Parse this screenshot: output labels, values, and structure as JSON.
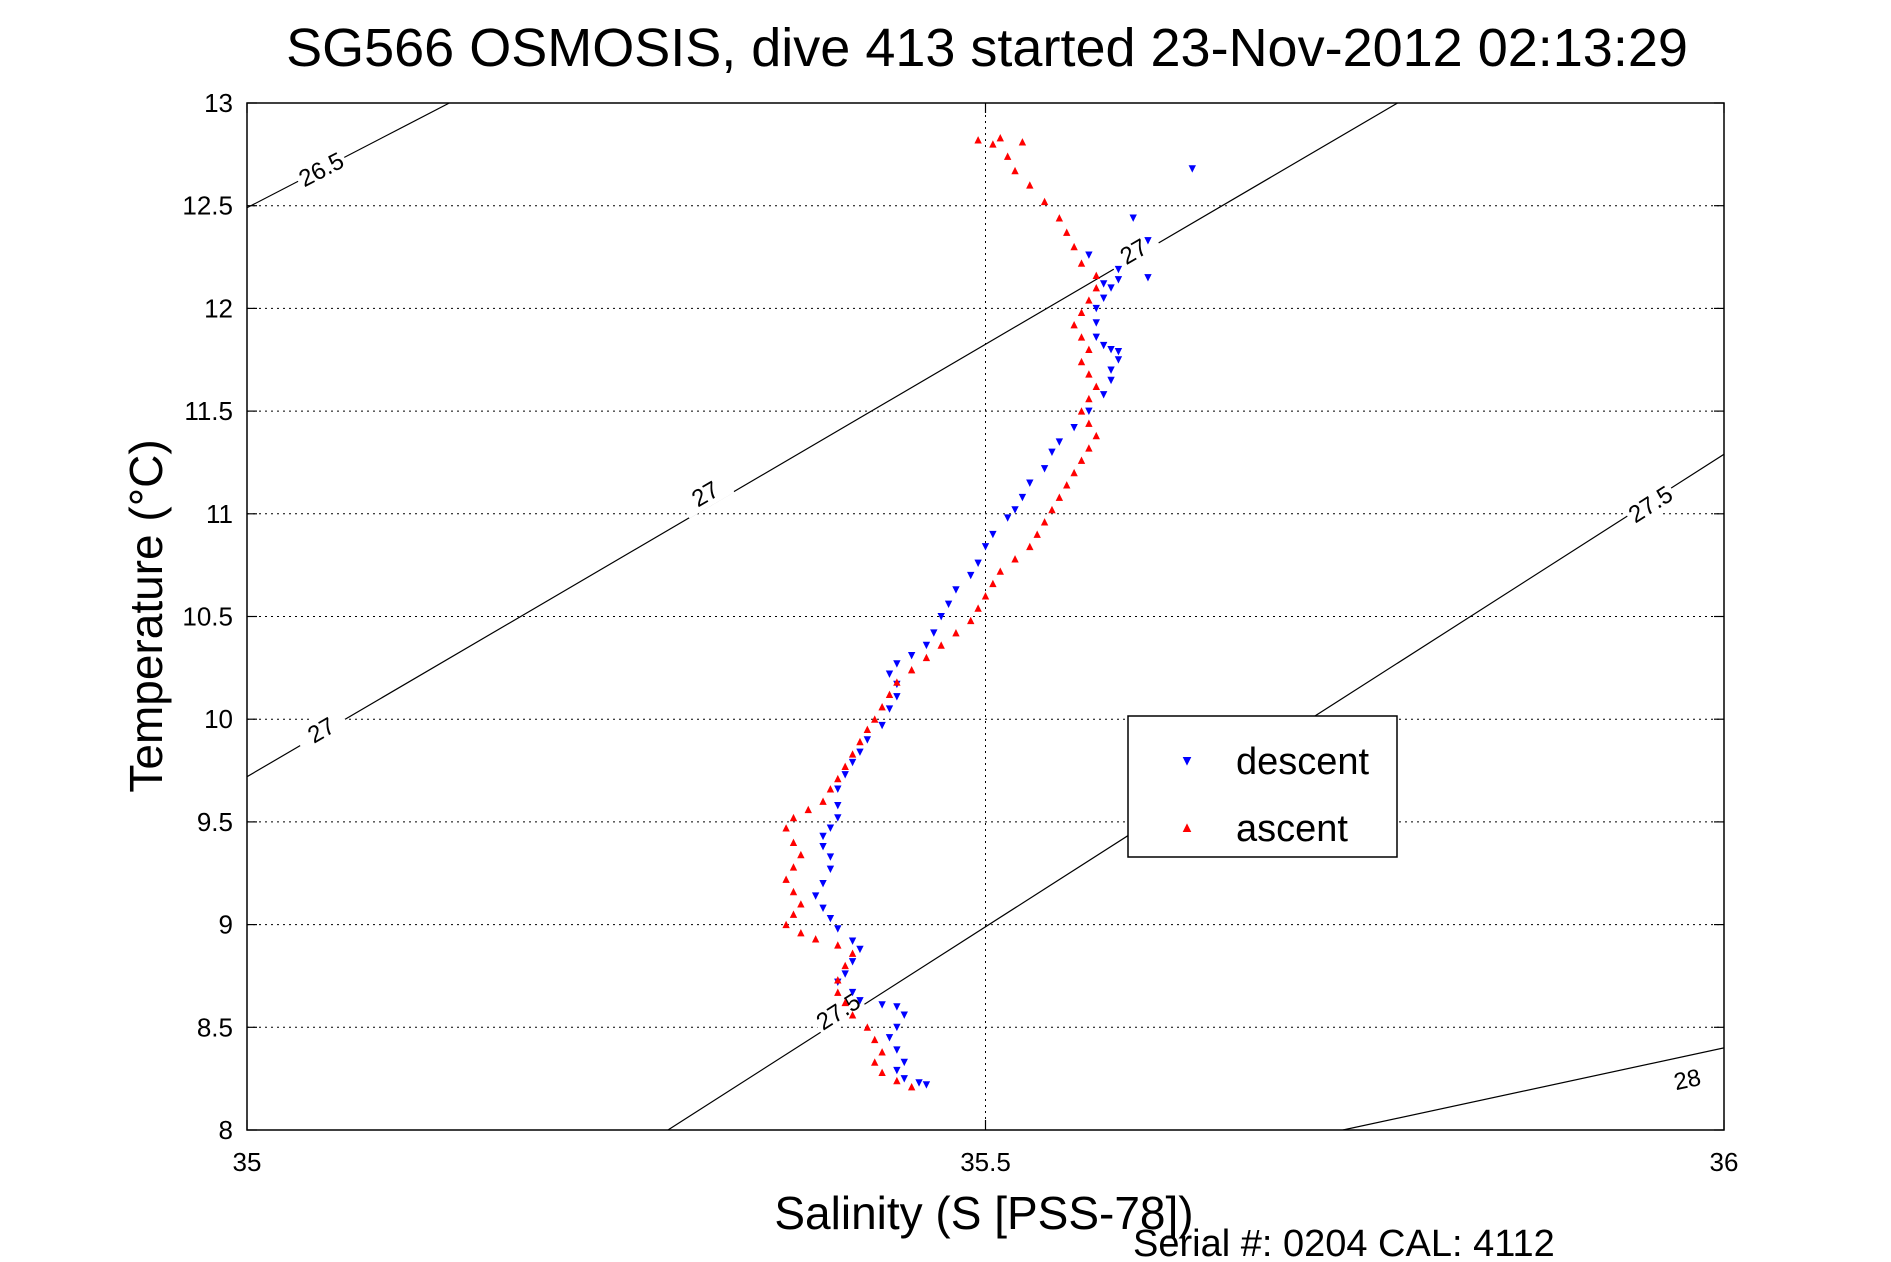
{
  "chart_data": {
    "type": "scatter",
    "title": "SG566 OSMOSIS, dive 413 started 23-Nov-2012 02:13:29",
    "xlabel": "Salinity (S [PSS-78])",
    "ylabel": "Temperature (°C)",
    "footer": "Serial #: 0204  CAL: 4112",
    "xlim": [
      35,
      36
    ],
    "ylim": [
      8,
      13
    ],
    "xticks": [
      35,
      35.5,
      36
    ],
    "xtick_labels": [
      "35",
      "35.5",
      "36"
    ],
    "yticks": [
      8,
      8.5,
      9,
      9.5,
      10,
      10.5,
      11,
      11.5,
      12,
      12.5,
      13
    ],
    "ytick_labels": [
      "8",
      "8.5",
      "9",
      "9.5",
      "10",
      "10.5",
      "11",
      "11.5",
      "12",
      "12.5",
      "13"
    ],
    "grid": true,
    "legend_position": "right",
    "series": [
      {
        "name": "descent",
        "color": "#0000ff",
        "marker": "triangle-down",
        "points": [
          [
            35.64,
            12.68
          ],
          [
            35.6,
            12.44
          ],
          [
            35.61,
            12.33
          ],
          [
            35.57,
            12.26
          ],
          [
            35.59,
            12.19
          ],
          [
            35.61,
            12.15
          ],
          [
            35.59,
            12.14
          ],
          [
            35.58,
            12.12
          ],
          [
            35.585,
            12.1
          ],
          [
            35.58,
            12.05
          ],
          [
            35.575,
            12.0
          ],
          [
            35.575,
            11.93
          ],
          [
            35.575,
            11.86
          ],
          [
            35.58,
            11.82
          ],
          [
            35.585,
            11.8
          ],
          [
            35.59,
            11.79
          ],
          [
            35.59,
            11.75
          ],
          [
            35.585,
            11.7
          ],
          [
            35.585,
            11.65
          ],
          [
            35.58,
            11.58
          ],
          [
            35.57,
            11.5
          ],
          [
            35.56,
            11.42
          ],
          [
            35.55,
            11.35
          ],
          [
            35.545,
            11.3
          ],
          [
            35.54,
            11.22
          ],
          [
            35.53,
            11.15
          ],
          [
            35.525,
            11.08
          ],
          [
            35.52,
            11.02
          ],
          [
            35.515,
            10.98
          ],
          [
            35.505,
            10.9
          ],
          [
            35.5,
            10.84
          ],
          [
            35.495,
            10.76
          ],
          [
            35.49,
            10.7
          ],
          [
            35.48,
            10.63
          ],
          [
            35.475,
            10.56
          ],
          [
            35.47,
            10.5
          ],
          [
            35.465,
            10.42
          ],
          [
            35.46,
            10.36
          ],
          [
            35.45,
            10.31
          ],
          [
            35.44,
            10.27
          ],
          [
            35.435,
            10.22
          ],
          [
            35.44,
            10.17
          ],
          [
            35.44,
            10.11
          ],
          [
            35.435,
            10.05
          ],
          [
            35.43,
            9.97
          ],
          [
            35.42,
            9.9
          ],
          [
            35.415,
            9.84
          ],
          [
            35.41,
            9.79
          ],
          [
            35.405,
            9.73
          ],
          [
            35.4,
            9.66
          ],
          [
            35.4,
            9.58
          ],
          [
            35.4,
            9.52
          ],
          [
            35.395,
            9.47
          ],
          [
            35.39,
            9.43
          ],
          [
            35.39,
            9.38
          ],
          [
            35.395,
            9.33
          ],
          [
            35.395,
            9.27
          ],
          [
            35.39,
            9.2
          ],
          [
            35.385,
            9.14
          ],
          [
            35.39,
            9.08
          ],
          [
            35.395,
            9.03
          ],
          [
            35.4,
            8.98
          ],
          [
            35.41,
            8.92
          ],
          [
            35.415,
            8.88
          ],
          [
            35.41,
            8.82
          ],
          [
            35.405,
            8.76
          ],
          [
            35.4,
            8.72
          ],
          [
            35.41,
            8.67
          ],
          [
            35.415,
            8.63
          ],
          [
            35.43,
            8.61
          ],
          [
            35.44,
            8.6
          ],
          [
            35.445,
            8.56
          ],
          [
            35.44,
            8.5
          ],
          [
            35.435,
            8.45
          ],
          [
            35.44,
            8.39
          ],
          [
            35.445,
            8.33
          ],
          [
            35.44,
            8.29
          ],
          [
            35.445,
            8.25
          ],
          [
            35.455,
            8.23
          ],
          [
            35.46,
            8.22
          ]
        ]
      },
      {
        "name": "ascent",
        "color": "#ff0000",
        "marker": "triangle-up",
        "points": [
          [
            35.45,
            8.21
          ],
          [
            35.44,
            8.24
          ],
          [
            35.43,
            8.28
          ],
          [
            35.425,
            8.33
          ],
          [
            35.43,
            8.38
          ],
          [
            35.425,
            8.44
          ],
          [
            35.42,
            8.5
          ],
          [
            35.41,
            8.56
          ],
          [
            35.405,
            8.62
          ],
          [
            35.4,
            8.67
          ],
          [
            35.4,
            8.73
          ],
          [
            35.405,
            8.8
          ],
          [
            35.41,
            8.86
          ],
          [
            35.4,
            8.9
          ],
          [
            35.385,
            8.93
          ],
          [
            35.375,
            8.96
          ],
          [
            35.365,
            9.0
          ],
          [
            35.37,
            9.05
          ],
          [
            35.375,
            9.1
          ],
          [
            35.37,
            9.16
          ],
          [
            35.365,
            9.22
          ],
          [
            35.37,
            9.28
          ],
          [
            35.375,
            9.34
          ],
          [
            35.37,
            9.4
          ],
          [
            35.365,
            9.47
          ],
          [
            35.37,
            9.52
          ],
          [
            35.38,
            9.56
          ],
          [
            35.39,
            9.6
          ],
          [
            35.395,
            9.66
          ],
          [
            35.4,
            9.71
          ],
          [
            35.405,
            9.77
          ],
          [
            35.41,
            9.83
          ],
          [
            35.415,
            9.89
          ],
          [
            35.42,
            9.95
          ],
          [
            35.425,
            10.0
          ],
          [
            35.43,
            10.06
          ],
          [
            35.435,
            10.12
          ],
          [
            35.44,
            10.18
          ],
          [
            35.45,
            10.24
          ],
          [
            35.46,
            10.3
          ],
          [
            35.47,
            10.36
          ],
          [
            35.48,
            10.42
          ],
          [
            35.49,
            10.48
          ],
          [
            35.495,
            10.54
          ],
          [
            35.5,
            10.6
          ],
          [
            35.505,
            10.66
          ],
          [
            35.51,
            10.72
          ],
          [
            35.52,
            10.78
          ],
          [
            35.53,
            10.84
          ],
          [
            35.535,
            10.9
          ],
          [
            35.54,
            10.96
          ],
          [
            35.545,
            11.02
          ],
          [
            35.55,
            11.08
          ],
          [
            35.555,
            11.14
          ],
          [
            35.56,
            11.2
          ],
          [
            35.565,
            11.26
          ],
          [
            35.57,
            11.32
          ],
          [
            35.575,
            11.38
          ],
          [
            35.57,
            11.44
          ],
          [
            35.565,
            11.5
          ],
          [
            35.57,
            11.56
          ],
          [
            35.575,
            11.62
          ],
          [
            35.57,
            11.68
          ],
          [
            35.565,
            11.74
          ],
          [
            35.57,
            11.8
          ],
          [
            35.565,
            11.86
          ],
          [
            35.56,
            11.92
          ],
          [
            35.565,
            11.98
          ],
          [
            35.57,
            12.04
          ],
          [
            35.575,
            12.1
          ],
          [
            35.575,
            12.16
          ],
          [
            35.565,
            12.22
          ],
          [
            35.56,
            12.3
          ],
          [
            35.555,
            12.37
          ],
          [
            35.55,
            12.44
          ],
          [
            35.54,
            12.52
          ],
          [
            35.53,
            12.6
          ],
          [
            35.52,
            12.67
          ],
          [
            35.515,
            12.74
          ],
          [
            35.505,
            12.8
          ],
          [
            35.495,
            12.82
          ],
          [
            35.51,
            12.83
          ],
          [
            35.525,
            12.81
          ]
        ]
      }
    ],
    "isopycnals": [
      {
        "label": "26.5",
        "points": [
          [
            35.0,
            12.49
          ],
          [
            35.137,
            13.0
          ]
        ],
        "label_at": [
          35.05,
          12.68
        ]
      },
      {
        "label": "27",
        "points": [
          [
            35.0,
            9.72
          ],
          [
            35.779,
            13.0
          ]
        ],
        "label_at": [
          35.31,
          11.1
        ]
      },
      {
        "label": "27",
        "points": [
          [
            35.0,
            9.72
          ],
          [
            35.779,
            13.0
          ]
        ],
        "label_at": [
          35.05,
          9.95
        ]
      },
      {
        "label": "27",
        "points": [
          [
            35.0,
            9.72
          ],
          [
            35.779,
            13.0
          ]
        ],
        "label_at": [
          35.6,
          12.28
        ]
      },
      {
        "label": "27.5",
        "points": [
          [
            35.285,
            8.0
          ],
          [
            36.0,
            11.29
          ]
        ],
        "label_at": [
          35.4,
          8.58
        ]
      },
      {
        "label": "27.5",
        "points": [
          [
            35.285,
            8.0
          ],
          [
            36.0,
            11.29
          ]
        ],
        "label_at": [
          35.95,
          11.05
        ]
      },
      {
        "label": "28",
        "points": [
          [
            35.742,
            8.0
          ],
          [
            36.0,
            8.4
          ]
        ],
        "label_at": [
          35.975,
          8.25
        ]
      }
    ]
  }
}
